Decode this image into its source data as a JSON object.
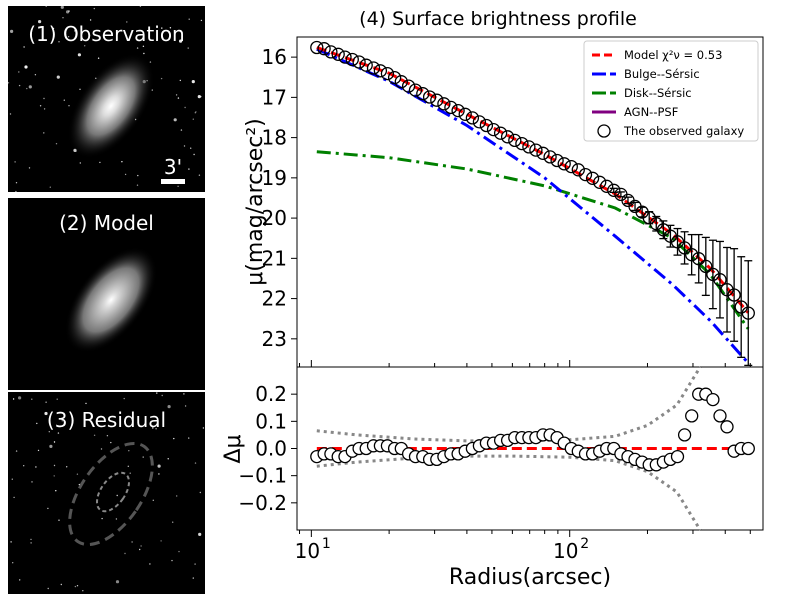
{
  "panels": {
    "observation": {
      "title": "(1) Observation",
      "scale_label": "3'"
    },
    "model": {
      "title": "(2) Model"
    },
    "residual": {
      "title": "(3) Residual"
    }
  },
  "chart_data": {
    "type": "scatter",
    "title": "(4) Surface brightness profile",
    "colors": {
      "model": "#ff0000",
      "bulge": "#0000ff",
      "disk": "#008000",
      "agn": "#800080",
      "dotted": "#888888"
    },
    "top": {
      "ylabel": "μ(mag/arcsec²)",
      "ylim": [
        23.7,
        15.5
      ],
      "yticks": [
        16,
        17,
        18,
        19,
        20,
        21,
        22,
        23
      ],
      "legend_location": "top-right",
      "legend": [
        "Model χ²ν = 0.53",
        "Bulge--Sérsic",
        "Disk--Sérsic",
        "AGN--PSF",
        "The observed galaxy"
      ],
      "observed": {
        "x": [
          10.5,
          11.2,
          11.9,
          12.7,
          13.5,
          14.4,
          15.3,
          16.3,
          17.4,
          18.5,
          19.7,
          21.0,
          22.3,
          23.8,
          25.3,
          27.0,
          28.7,
          30.6,
          32.6,
          34.7,
          37.0,
          39.4,
          42.0,
          44.7,
          47.6,
          50.7,
          54.0,
          57.5,
          61.3,
          65.3,
          69.5,
          74.0,
          78.8,
          84.0,
          89.4,
          95.2,
          101.4,
          108.0,
          115.1,
          122.6,
          130.6,
          139.1,
          148.1,
          157.8,
          168.1,
          179.0,
          190.7,
          203.1,
          216.3,
          230.4,
          245.4,
          261.4,
          278.4,
          296.5,
          315.8,
          336.4,
          358.3,
          381.6,
          406.4,
          432.9,
          461.1,
          491.1
        ],
        "y": [
          15.76,
          15.79,
          15.87,
          15.93,
          16.0,
          16.06,
          16.12,
          16.2,
          16.27,
          16.34,
          16.41,
          16.51,
          16.61,
          16.72,
          16.82,
          16.91,
          16.99,
          17.07,
          17.16,
          17.25,
          17.33,
          17.42,
          17.51,
          17.61,
          17.7,
          17.8,
          17.89,
          17.98,
          18.07,
          18.15,
          18.23,
          18.31,
          18.39,
          18.48,
          18.57,
          18.65,
          18.72,
          18.8,
          18.92,
          19.01,
          19.11,
          19.21,
          19.31,
          19.41,
          19.56,
          19.71,
          19.85,
          19.99,
          20.14,
          20.29,
          20.45,
          20.59,
          20.74,
          20.91,
          21.01,
          21.2,
          21.4,
          21.53,
          21.78,
          21.91,
          22.21,
          22.36
        ],
        "err": [
          0.01,
          0.01,
          0.01,
          0.01,
          0.01,
          0.01,
          0.01,
          0.01,
          0.01,
          0.01,
          0.01,
          0.01,
          0.01,
          0.01,
          0.01,
          0.01,
          0.01,
          0.01,
          0.01,
          0.01,
          0.01,
          0.01,
          0.01,
          0.01,
          0.01,
          0.01,
          0.01,
          0.01,
          0.01,
          0.01,
          0.01,
          0.01,
          0.01,
          0.01,
          0.01,
          0.01,
          0.01,
          0.01,
          0.02,
          0.02,
          0.03,
          0.04,
          0.05,
          0.06,
          0.08,
          0.1,
          0.12,
          0.15,
          0.18,
          0.22,
          0.27,
          0.33,
          0.4,
          0.5,
          0.6,
          0.72,
          0.85,
          0.95,
          1.05,
          1.15,
          1.25,
          1.3
        ]
      },
      "model": {
        "x": [
          10.5,
          20,
          40,
          80,
          150,
          250,
          350,
          491
        ],
        "y": [
          15.76,
          16.4,
          17.42,
          18.42,
          19.4,
          20.4,
          21.25,
          22.35
        ]
      },
      "bulge": {
        "x": [
          10.5,
          20,
          40,
          80,
          150,
          250,
          350,
          491
        ],
        "y": [
          15.8,
          16.6,
          17.7,
          19.0,
          20.45,
          21.65,
          22.55,
          23.6
        ]
      },
      "disk": {
        "x": [
          10.5,
          20,
          40,
          80,
          150,
          250,
          350,
          491
        ],
        "y": [
          18.35,
          18.5,
          18.78,
          19.2,
          19.75,
          20.5,
          21.4,
          22.75
        ]
      }
    },
    "bottom": {
      "ylabel": "Δμ",
      "ylim": [
        -0.3,
        0.3
      ],
      "yticks": [
        0.2,
        0.1,
        0.0,
        -0.1,
        -0.2
      ],
      "ytick_labels": [
        "0.2",
        "0.1",
        "0.0",
        "−0.1",
        "−0.2"
      ],
      "residual_y": [
        -0.03,
        -0.02,
        -0.02,
        -0.03,
        -0.03,
        -0.01,
        0.0,
        0.0,
        0.01,
        0.01,
        0.01,
        0.0,
        0.0,
        -0.02,
        -0.03,
        -0.03,
        -0.04,
        -0.04,
        -0.03,
        -0.02,
        -0.02,
        -0.01,
        0.0,
        0.01,
        0.02,
        0.02,
        0.03,
        0.03,
        0.04,
        0.04,
        0.04,
        0.04,
        0.05,
        0.05,
        0.04,
        0.02,
        0.0,
        -0.01,
        -0.02,
        -0.02,
        -0.01,
        0.0,
        0.0,
        -0.02,
        -0.03,
        -0.04,
        -0.05,
        -0.06,
        -0.06,
        -0.05,
        -0.04,
        -0.03,
        0.05,
        0.12,
        0.2,
        0.2,
        0.18,
        0.12,
        0.08,
        -0.01,
        0.0,
        0.0
      ],
      "upper_bound": {
        "x": [
          10.5,
          15,
          25,
          40,
          60,
          100,
          150,
          200,
          260,
          320
        ],
        "y": [
          0.065,
          0.05,
          0.035,
          0.028,
          0.028,
          0.032,
          0.045,
          0.085,
          0.16,
          0.3
        ]
      },
      "lower_bound": {
        "x": [
          10.5,
          15,
          25,
          40,
          60,
          100,
          150,
          200,
          260,
          320
        ],
        "y": [
          -0.065,
          -0.05,
          -0.035,
          -0.028,
          -0.028,
          -0.032,
          -0.045,
          -0.085,
          -0.16,
          -0.3
        ]
      }
    },
    "xlabel": "Radius(arcsec)",
    "xlim": [
      8.8,
      560
    ],
    "xscale": "log",
    "xticks": [
      10,
      100
    ],
    "xtick_labels": [
      [
        "10",
        "1"
      ],
      [
        "10",
        "2"
      ]
    ]
  }
}
